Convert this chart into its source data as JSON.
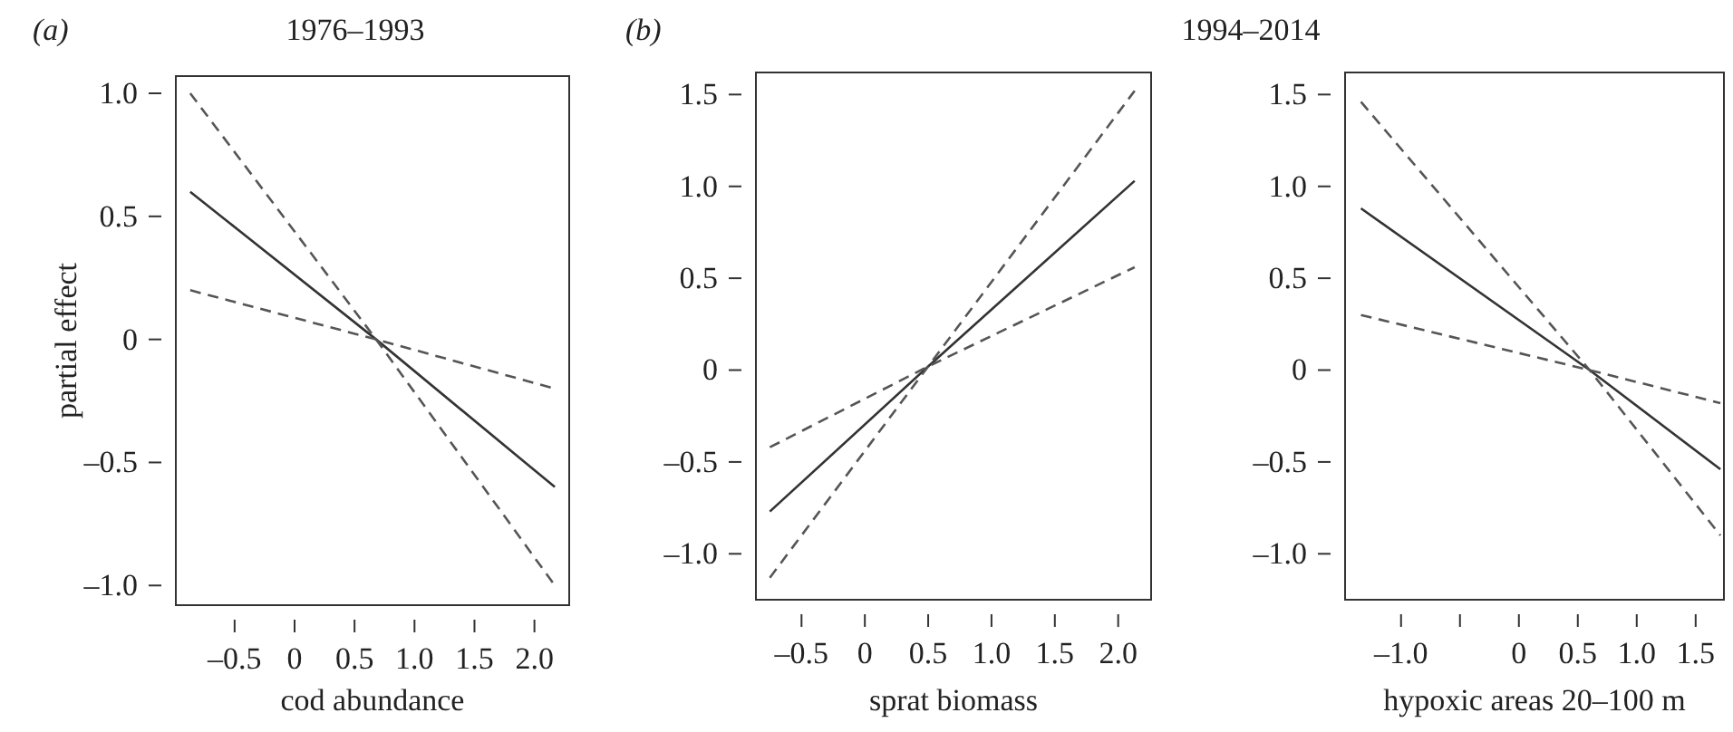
{
  "chart_data": [
    {
      "type": "line",
      "title": "1976–1993",
      "xlabel": "cod abundance",
      "ylabel": "partial effect",
      "annotations": [
        "(a)"
      ],
      "xlim": [
        -0.99,
        2.29
      ],
      "ylim": [
        -1.08,
        1.07
      ],
      "xticks": [
        {
          "value": -0.5,
          "label": "–0.5"
        },
        0,
        0.5,
        {
          "value": 1,
          "label": "1.0"
        },
        1.5,
        {
          "value": 2,
          "label": "2.0"
        }
      ],
      "yticks": [
        {
          "value": -1,
          "label": "–1.0"
        },
        {
          "value": -0.5,
          "label": "–0.5"
        },
        0,
        0.5,
        {
          "value": 1,
          "label": "1.0"
        }
      ],
      "grid": false,
      "series": [
        {
          "color": "#333333",
          "line_style": "solid",
          "x": [
            -0.87,
            0.68,
            2.17
          ],
          "values": [
            0.6,
            0,
            -0.6
          ]
        },
        {
          "color": "#555555",
          "line_style": "dashed",
          "x": [
            -0.87,
            0.68,
            2.17
          ],
          "values": [
            1.0,
            0,
            -1.0
          ]
        },
        {
          "color": "#555555",
          "line_style": "dashed",
          "x": [
            -0.87,
            0.68,
            2.17
          ],
          "values": [
            0.2,
            0,
            -0.2
          ]
        }
      ]
    },
    {
      "type": "line",
      "xlabel": "sprat biomass",
      "annotations": [
        "(b)"
      ],
      "xlim": [
        -0.86,
        2.26
      ],
      "ylim": [
        -1.25,
        1.62
      ],
      "xticks": [
        {
          "value": -0.5,
          "label": "–0.5"
        },
        0,
        0.5,
        {
          "value": 1,
          "label": "1.0"
        },
        1.5,
        {
          "value": 2,
          "label": "2.0"
        }
      ],
      "yticks": [
        {
          "value": -1,
          "label": "–1.0"
        },
        {
          "value": -0.5,
          "label": "–0.5"
        },
        0,
        0.5,
        {
          "value": 1,
          "label": "1.0"
        },
        1.5
      ],
      "grid": false,
      "series": [
        {
          "color": "#333333",
          "line_style": "solid",
          "x": [
            -0.75,
            0.5,
            2.13
          ],
          "values": [
            -0.77,
            0.02,
            1.03
          ]
        },
        {
          "color": "#555555",
          "line_style": "dashed",
          "x": [
            -0.75,
            0.5,
            2.13
          ],
          "values": [
            -1.13,
            0.02,
            1.52
          ]
        },
        {
          "color": "#555555",
          "line_style": "dashed",
          "x": [
            -0.75,
            0.5,
            2.13
          ],
          "values": [
            -0.42,
            0.02,
            0.56
          ]
        }
      ]
    },
    {
      "type": "line",
      "title": "1994–2014",
      "xlabel": "hypoxic areas 20–100 m",
      "xlim": [
        -1.475,
        1.74
      ],
      "ylim": [
        -1.25,
        1.62
      ],
      "xticks": [
        {
          "value": -1,
          "label": "–1.0"
        },
        {
          "value": -0.5,
          "label": null
        },
        0,
        0.5,
        {
          "value": 1,
          "label": "1.0"
        },
        1.5
      ],
      "yticks": [
        {
          "value": -1,
          "label": "–1.0"
        },
        {
          "value": -0.5,
          "label": "–0.5"
        },
        0,
        0.5,
        {
          "value": 1,
          "label": "1.0"
        },
        1.5
      ],
      "grid": false,
      "series": [
        {
          "color": "#333333",
          "line_style": "solid",
          "x": [
            -1.34,
            0.6,
            1.71
          ],
          "values": [
            0.88,
            0,
            -0.54
          ]
        },
        {
          "color": "#555555",
          "line_style": "dashed",
          "x": [
            -1.34,
            0.6,
            1.71
          ],
          "values": [
            1.46,
            0,
            -0.9
          ]
        },
        {
          "color": "#555555",
          "line_style": "dashed",
          "x": [
            -1.34,
            0.6,
            1.71
          ],
          "values": [
            0.3,
            0,
            -0.18
          ]
        }
      ]
    }
  ]
}
